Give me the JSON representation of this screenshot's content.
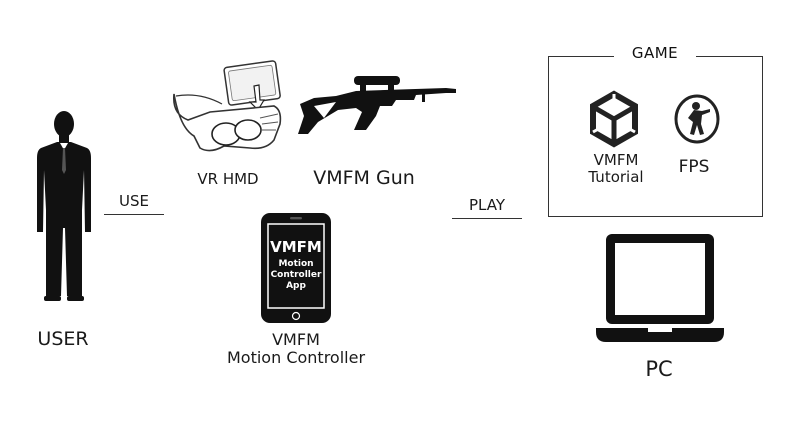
{
  "user": {
    "label": "USER"
  },
  "use_link": {
    "label": "USE"
  },
  "vr_hmd": {
    "label": "VR HMD"
  },
  "gun": {
    "label": "VMFM Gun"
  },
  "phone": {
    "label_line1": "VMFM",
    "label_line2": "Motion Controller",
    "screen_title": "VMFM",
    "screen_line1": "Motion",
    "screen_line2": "Controller",
    "screen_line3": "App"
  },
  "play_link": {
    "label": "PLAY"
  },
  "game": {
    "title": "GAME",
    "tutorial_line1": "VMFM",
    "tutorial_line2": "Tutorial",
    "fps_label": "FPS"
  },
  "pc": {
    "label": "PC"
  },
  "colors": {
    "ink": "#111111",
    "line": "#333333",
    "background": "#ffffff"
  },
  "icons": [
    "person-icon",
    "vr-headset-icon",
    "rifle-icon",
    "smartphone-icon",
    "unity-logo-icon",
    "counter-strike-logo-icon",
    "laptop-icon"
  ]
}
